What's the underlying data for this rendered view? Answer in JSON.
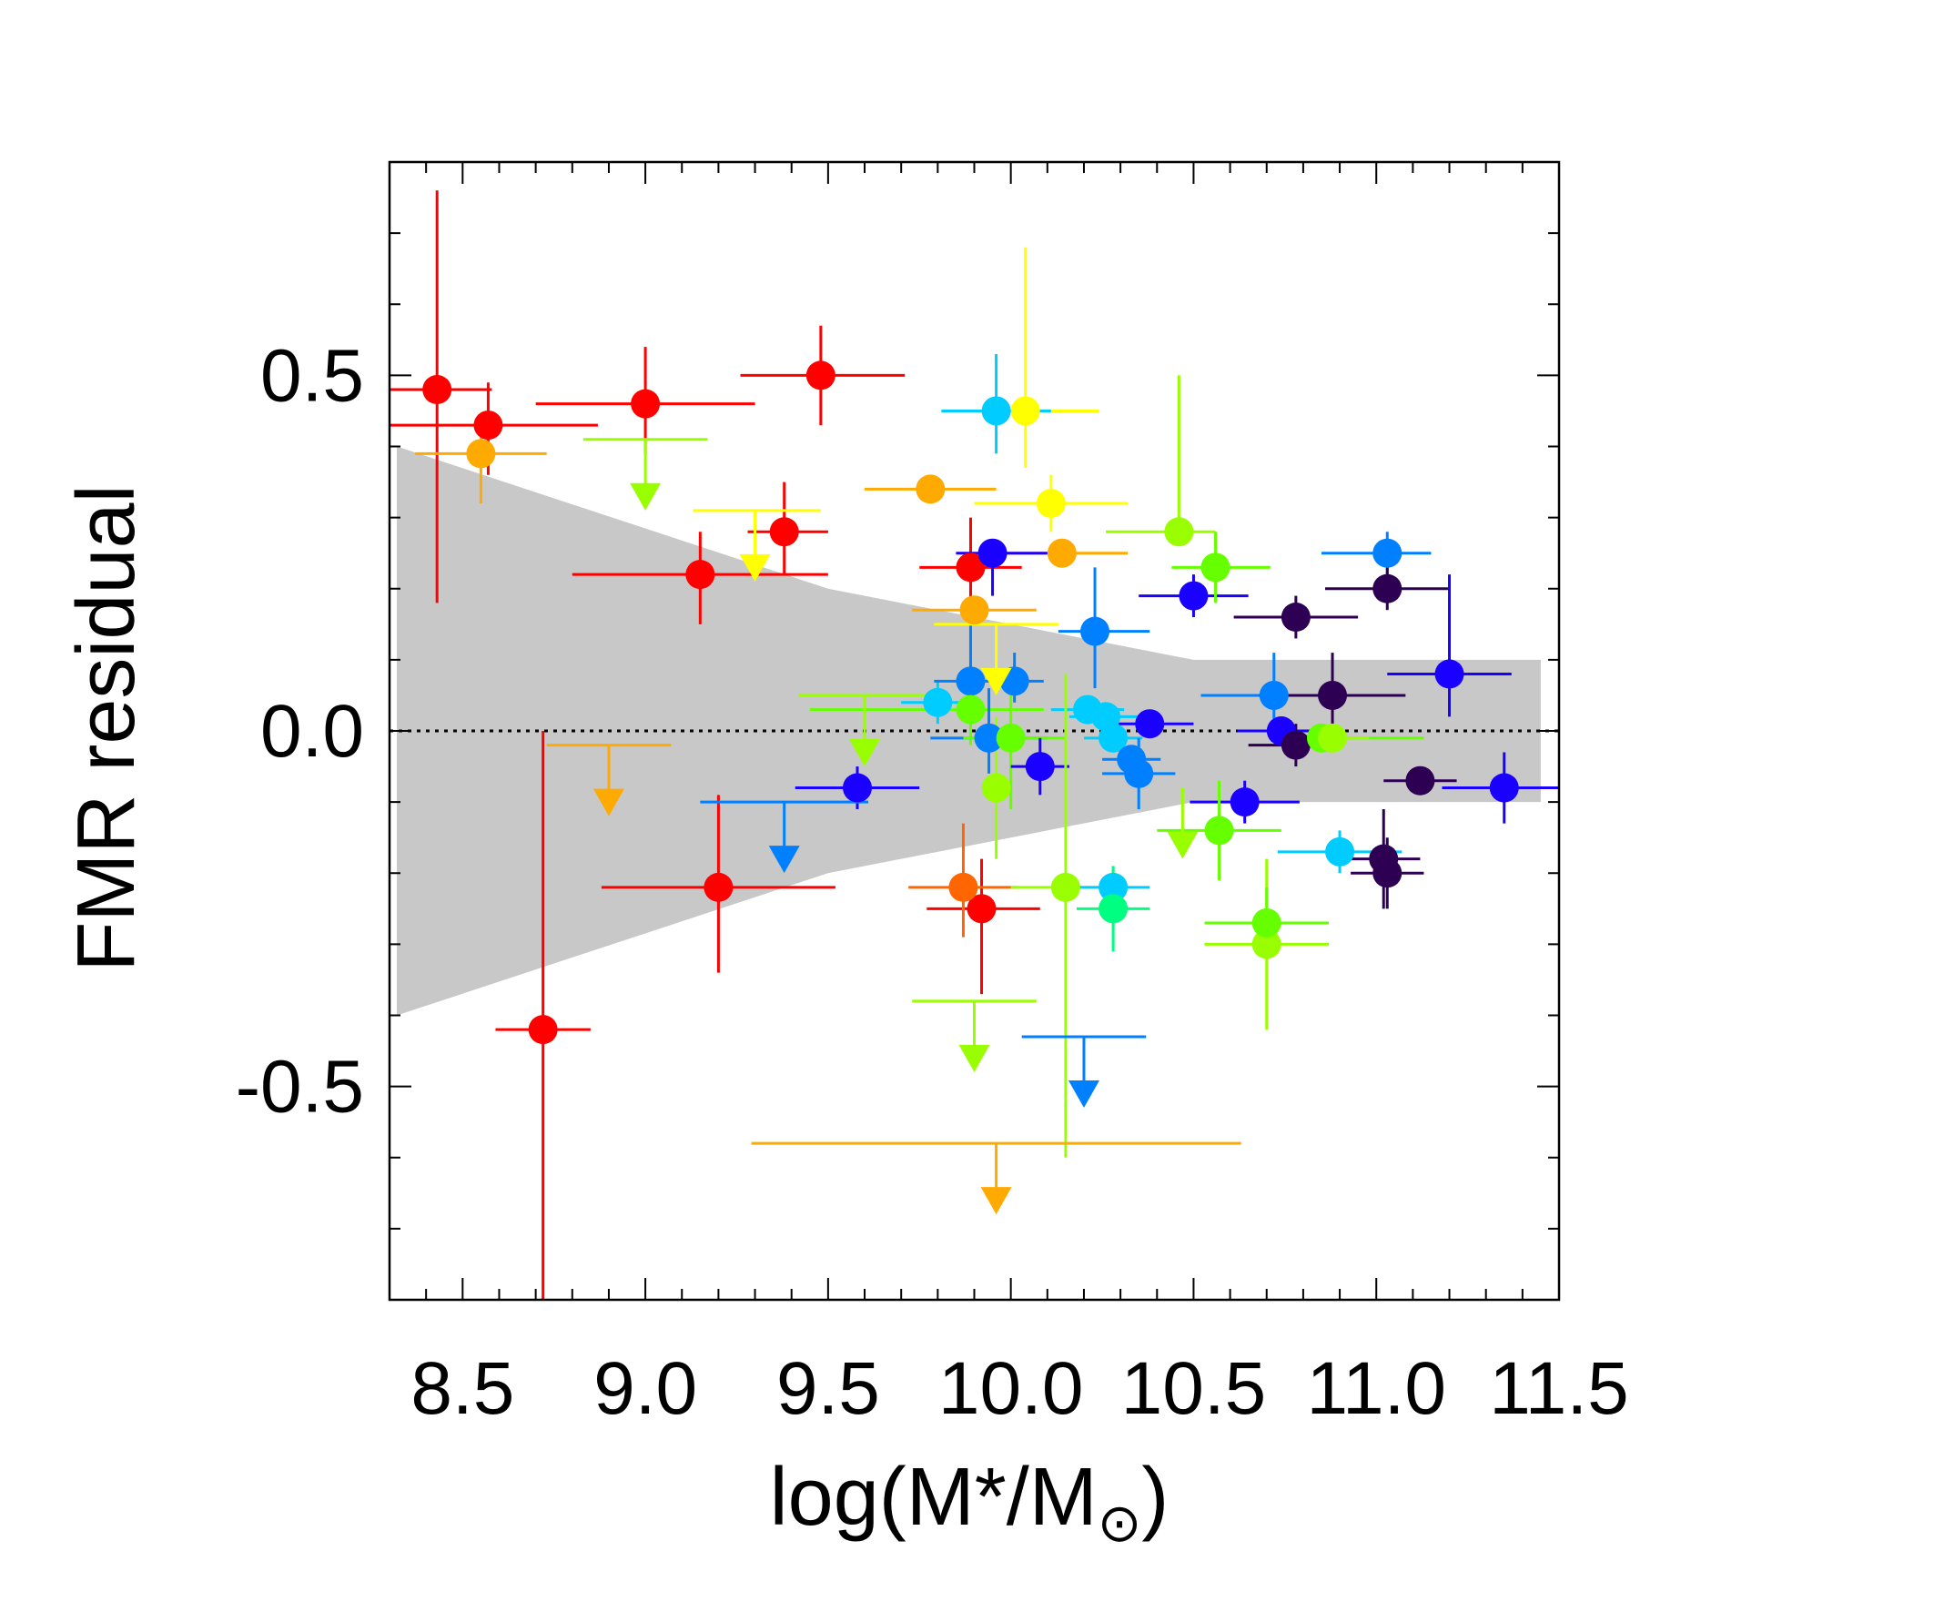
{
  "chart_data": {
    "type": "scatter",
    "xlabel": "log(M*/M",
    "xlabel_sub": "⊙",
    "xlabel_end": ")",
    "ylabel": "FMR residual",
    "xlim": [
      8.3,
      11.5
    ],
    "ylim": [
      -0.8,
      0.8
    ],
    "xticks": [
      "8.5",
      "9.0",
      "9.5",
      "10.0",
      "10.5",
      "11.0",
      "11.5"
    ],
    "xtick_values": [
      8.5,
      9.0,
      9.5,
      10.0,
      10.5,
      11.0,
      11.5
    ],
    "yticks": [
      "-0.5",
      "0.0",
      "0.5"
    ],
    "ytick_values": [
      -0.5,
      0.0,
      0.5
    ],
    "reference_line": 0.0,
    "band": {
      "color": "#c8c8c8",
      "x": [
        8.32,
        9.5,
        10.5,
        11.45
      ],
      "upper": [
        0.4,
        0.2,
        0.1,
        0.1
      ],
      "lower": [
        -0.4,
        -0.2,
        -0.1,
        -0.1
      ]
    },
    "points": [
      {
        "x": 8.43,
        "y": 0.48,
        "xerr": [
          0.15,
          0.15
        ],
        "yerr": [
          0.3,
          0.28
        ],
        "color": "#ff0000"
      },
      {
        "x": 8.57,
        "y": 0.43,
        "xerr": [
          0.27,
          0.3
        ],
        "yerr": [
          0.07,
          0.06
        ],
        "color": "#ff0000"
      },
      {
        "x": 8.55,
        "y": 0.39,
        "xerr": [
          0.18,
          0.18
        ],
        "yerr": [
          0.07,
          0.04
        ],
        "color": "#ffaa00"
      },
      {
        "x": 9.0,
        "y": 0.46,
        "xerr": [
          0.3,
          0.3
        ],
        "yerr": [
          0.07,
          0.08
        ],
        "color": "#ff0000"
      },
      {
        "x": 9.48,
        "y": 0.5,
        "xerr": [
          0.22,
          0.23
        ],
        "yerr": [
          0.07,
          0.07
        ],
        "color": "#ff0000"
      },
      {
        "x": 9.38,
        "y": 0.28,
        "xerr": [
          0.1,
          0.12
        ],
        "yerr": [
          0.06,
          0.07
        ],
        "color": "#ff0000"
      },
      {
        "x": 9.15,
        "y": 0.22,
        "xerr": [
          0.35,
          0.35
        ],
        "yerr": [
          0.07,
          0.06
        ],
        "color": "#ff0000"
      },
      {
        "x": 8.72,
        "y": -0.42,
        "xerr": [
          0.13,
          0.13
        ],
        "yerr": [
          0.7,
          0.42
        ],
        "color": "#ff0000"
      },
      {
        "x": 9.2,
        "y": -0.22,
        "xerr": [
          0.32,
          0.32
        ],
        "yerr": [
          0.12,
          0.13
        ],
        "color": "#ff0000"
      },
      {
        "x": 9.89,
        "y": 0.23,
        "xerr": [
          0.14,
          0.14
        ],
        "yerr": [
          0.22,
          0.07
        ],
        "color": "#ff0000"
      },
      {
        "x": 9.92,
        "y": -0.25,
        "xerr": [
          0.15,
          0.16
        ],
        "yerr": [
          0.12,
          0.07
        ],
        "color": "#ff0000"
      },
      {
        "x": 9.78,
        "y": 0.34,
        "xerr": [
          0.18,
          0.18
        ],
        "yerr": [
          0.0,
          0.0
        ],
        "color": "#ffaa00"
      },
      {
        "x": 9.9,
        "y": 0.17,
        "xerr": [
          0.17,
          0.17
        ],
        "yerr": [
          0.0,
          0.0
        ],
        "color": "#ffaa00"
      },
      {
        "x": 10.14,
        "y": 0.25,
        "xerr": [
          0.18,
          0.18
        ],
        "yerr": [
          0.0,
          0.0
        ],
        "color": "#ffaa00"
      },
      {
        "x": 9.87,
        "y": -0.22,
        "xerr": [
          0.15,
          0.15
        ],
        "yerr": [
          0.07,
          0.09
        ],
        "color": "#ff6600"
      },
      {
        "x": 10.04,
        "y": 0.45,
        "xerr": [
          0.2,
          0.2
        ],
        "yerr": [
          0.08,
          0.23
        ],
        "color": "#ffff00"
      },
      {
        "x": 10.11,
        "y": 0.32,
        "xerr": [
          0.21,
          0.21
        ],
        "yerr": [
          0.04,
          0.04
        ],
        "color": "#ffff00"
      },
      {
        "x": 9.96,
        "y": 0.45,
        "xerr": [
          0.15,
          0.15
        ],
        "yerr": [
          0.06,
          0.08
        ],
        "color": "#00ccff"
      },
      {
        "x": 9.95,
        "y": 0.25,
        "xerr": [
          0.1,
          0.15
        ],
        "yerr": [
          0.06,
          0.02
        ],
        "color": "#1a00ff"
      },
      {
        "x": 10.5,
        "y": 0.19,
        "xerr": [
          0.15,
          0.15
        ],
        "yerr": [
          0.03,
          0.03
        ],
        "color": "#1a00ff"
      },
      {
        "x": 10.46,
        "y": 0.28,
        "xerr": [
          0.2,
          0.1
        ],
        "yerr": [
          0.0,
          0.22
        ],
        "color": "#99ff00"
      },
      {
        "x": 10.56,
        "y": 0.23,
        "xerr": [
          0.12,
          0.15
        ],
        "yerr": [
          0.05,
          0.05
        ],
        "color": "#66ff00"
      },
      {
        "x": 10.23,
        "y": 0.14,
        "xerr": [
          0.1,
          0.15
        ],
        "yerr": [
          0.08,
          0.09
        ],
        "color": "#0080ff"
      },
      {
        "x": 9.8,
        "y": 0.04,
        "xerr": [
          0.1,
          0.12
        ],
        "yerr": [
          0.03,
          0.03
        ],
        "color": "#00ccff"
      },
      {
        "x": 9.89,
        "y": 0.07,
        "xerr": [
          0.1,
          0.12
        ],
        "yerr": [
          0.05,
          0.1
        ],
        "color": "#0080ff"
      },
      {
        "x": 10.01,
        "y": 0.07,
        "xerr": [
          0.08,
          0.08
        ],
        "yerr": [
          0.03,
          0.04
        ],
        "color": "#0080ff"
      },
      {
        "x": 9.89,
        "y": 0.03,
        "xerr": [
          0.44,
          0.2
        ],
        "yerr": [
          0.05,
          0.05
        ],
        "color": "#66ff00"
      },
      {
        "x": 9.94,
        "y": -0.01,
        "xerr": [
          0.16,
          0.16
        ],
        "yerr": [
          0.05,
          0.07
        ],
        "color": "#0080ff"
      },
      {
        "x": 10.0,
        "y": -0.01,
        "xerr": [
          0.13,
          0.15
        ],
        "yerr": [
          0.1,
          0.1
        ],
        "color": "#66ff00"
      },
      {
        "x": 10.08,
        "y": -0.05,
        "xerr": [
          0.08,
          0.08
        ],
        "yerr": [
          0.04,
          0.04
        ],
        "color": "#1a00ff"
      },
      {
        "x": 9.96,
        "y": -0.08,
        "xerr": [
          0.0,
          0.0
        ],
        "yerr": [
          0.1,
          0.1
        ],
        "color": "#99ff00"
      },
      {
        "x": 10.21,
        "y": 0.03,
        "xerr": [
          0.1,
          0.1
        ],
        "yerr": [
          0.02,
          0.02
        ],
        "color": "#00ccff"
      },
      {
        "x": 10.26,
        "y": 0.02,
        "xerr": [
          0.1,
          0.1
        ],
        "yerr": [
          0.02,
          0.02
        ],
        "color": "#00ccff"
      },
      {
        "x": 10.28,
        "y": -0.01,
        "xerr": [
          0.08,
          0.08
        ],
        "yerr": [
          0.02,
          0.02
        ],
        "color": "#00ccff"
      },
      {
        "x": 10.33,
        "y": -0.04,
        "xerr": [
          0.08,
          0.08
        ],
        "yerr": [
          0.02,
          0.02
        ],
        "color": "#0080ff"
      },
      {
        "x": 10.35,
        "y": -0.06,
        "xerr": [
          0.1,
          0.1
        ],
        "yerr": [
          0.05,
          0.05
        ],
        "color": "#0080ff"
      },
      {
        "x": 10.38,
        "y": 0.01,
        "xerr": [
          0.12,
          0.12
        ],
        "yerr": [
          0.02,
          0.02
        ],
        "color": "#1a00ff"
      },
      {
        "x": 10.64,
        "y": -0.1,
        "xerr": [
          0.15,
          0.15
        ],
        "yerr": [
          0.03,
          0.03
        ],
        "color": "#1a00ff"
      },
      {
        "x": 9.58,
        "y": -0.08,
        "xerr": [
          0.17,
          0.17
        ],
        "yerr": [
          0.03,
          0.03
        ],
        "color": "#1a00ff"
      },
      {
        "x": 10.72,
        "y": 0.05,
        "xerr": [
          0.2,
          0.2
        ],
        "yerr": [
          0.06,
          0.06
        ],
        "color": "#0080ff"
      },
      {
        "x": 10.74,
        "y": 0.0,
        "xerr": [
          0.12,
          0.12
        ],
        "yerr": [
          0.02,
          0.02
        ],
        "color": "#1a00ff"
      },
      {
        "x": 10.78,
        "y": 0.16,
        "xerr": [
          0.17,
          0.17
        ],
        "yerr": [
          0.03,
          0.03
        ],
        "color": "#2e0054"
      },
      {
        "x": 10.78,
        "y": -0.02,
        "xerr": [
          0.13,
          0.13
        ],
        "yerr": [
          0.03,
          0.03
        ],
        "color": "#2e0054"
      },
      {
        "x": 10.88,
        "y": 0.05,
        "xerr": [
          0.2,
          0.2
        ],
        "yerr": [
          0.06,
          0.06
        ],
        "color": "#2e0054"
      },
      {
        "x": 10.85,
        "y": -0.01,
        "xerr": [
          0.08,
          0.28
        ],
        "yerr": [
          0.02,
          0.02
        ],
        "color": "#66ff00"
      },
      {
        "x": 10.88,
        "y": -0.01,
        "xerr": [
          0.1,
          0.1
        ],
        "yerr": [
          0.02,
          0.02
        ],
        "color": "#99ff00"
      },
      {
        "x": 11.03,
        "y": 0.25,
        "xerr": [
          0.18,
          0.12
        ],
        "yerr": [
          0.03,
          0.03
        ],
        "color": "#0080ff"
      },
      {
        "x": 11.03,
        "y": 0.2,
        "xerr": [
          0.17,
          0.17
        ],
        "yerr": [
          0.03,
          0.03
        ],
        "color": "#2e0054"
      },
      {
        "x": 11.2,
        "y": 0.08,
        "xerr": [
          0.17,
          0.17
        ],
        "yerr": [
          0.06,
          0.14
        ],
        "color": "#1a00ff"
      },
      {
        "x": 11.12,
        "y": -0.07,
        "xerr": [
          0.1,
          0.1
        ],
        "yerr": [
          0.02,
          0.02
        ],
        "color": "#2e0054"
      },
      {
        "x": 11.35,
        "y": -0.08,
        "xerr": [
          0.17,
          0.17
        ],
        "yerr": [
          0.05,
          0.05
        ],
        "color": "#1a00ff"
      },
      {
        "x": 10.9,
        "y": -0.17,
        "xerr": [
          0.17,
          0.17
        ],
        "yerr": [
          0.03,
          0.03
        ],
        "color": "#00ccff"
      },
      {
        "x": 11.02,
        "y": -0.18,
        "xerr": [
          0.1,
          0.1
        ],
        "yerr": [
          0.07,
          0.07
        ],
        "color": "#2e0054"
      },
      {
        "x": 11.03,
        "y": -0.2,
        "xerr": [
          0.1,
          0.1
        ],
        "yerr": [
          0.05,
          0.05
        ],
        "color": "#2e0054"
      },
      {
        "x": 10.57,
        "y": -0.14,
        "xerr": [
          0.17,
          0.17
        ],
        "yerr": [
          0.07,
          0.07
        ],
        "color": "#66ff00"
      },
      {
        "x": 10.15,
        "y": -0.22,
        "xerr": [
          0.15,
          0.15
        ],
        "yerr": [
          0.38,
          0.3
        ],
        "color": "#99ff00"
      },
      {
        "x": 10.28,
        "y": -0.22,
        "xerr": [
          0.1,
          0.1
        ],
        "yerr": [
          0.03,
          0.03
        ],
        "color": "#00ccff"
      },
      {
        "x": 10.28,
        "y": -0.25,
        "xerr": [
          0.1,
          0.1
        ],
        "yerr": [
          0.06,
          0.06
        ],
        "color": "#00ff80"
      },
      {
        "x": 10.7,
        "y": -0.3,
        "xerr": [
          0.17,
          0.17
        ],
        "yerr": [
          0.12,
          0.12
        ],
        "color": "#99ff00"
      },
      {
        "x": 10.7,
        "y": -0.27,
        "xerr": [
          0.17,
          0.17
        ],
        "yerr": [
          0.05,
          0.05
        ],
        "color": "#66ff00"
      }
    ],
    "upper_limits": [
      {
        "x": 9.0,
        "y": 0.41,
        "xerr": [
          0.17,
          0.17
        ],
        "color": "#99ff00"
      },
      {
        "x": 9.3,
        "y": 0.31,
        "xerr": [
          0.17,
          0.18
        ],
        "color": "#ffff00"
      },
      {
        "x": 8.9,
        "y": -0.02,
        "xerr": [
          0.17,
          0.17
        ],
        "color": "#ffaa00"
      },
      {
        "x": 9.38,
        "y": -0.1,
        "xerr": [
          0.23,
          0.23
        ],
        "color": "#0080ff"
      },
      {
        "x": 9.6,
        "y": 0.05,
        "xerr": [
          0.18,
          0.18
        ],
        "color": "#99ff00"
      },
      {
        "x": 9.96,
        "y": 0.15,
        "xerr": [
          0.17,
          0.17
        ],
        "color": "#ffff00"
      },
      {
        "x": 10.47,
        "y": -0.08,
        "xerr": [
          0.0,
          0.0
        ],
        "color": "#99ff00"
      },
      {
        "x": 9.9,
        "y": -0.38,
        "xerr": [
          0.17,
          0.17
        ],
        "color": "#99ff00"
      },
      {
        "x": 10.2,
        "y": -0.43,
        "xerr": [
          0.17,
          0.17
        ],
        "color": "#0080ff"
      },
      {
        "x": 9.96,
        "y": -0.58,
        "xerr": [
          0.67,
          0.67
        ],
        "color": "#ffaa00"
      }
    ]
  }
}
